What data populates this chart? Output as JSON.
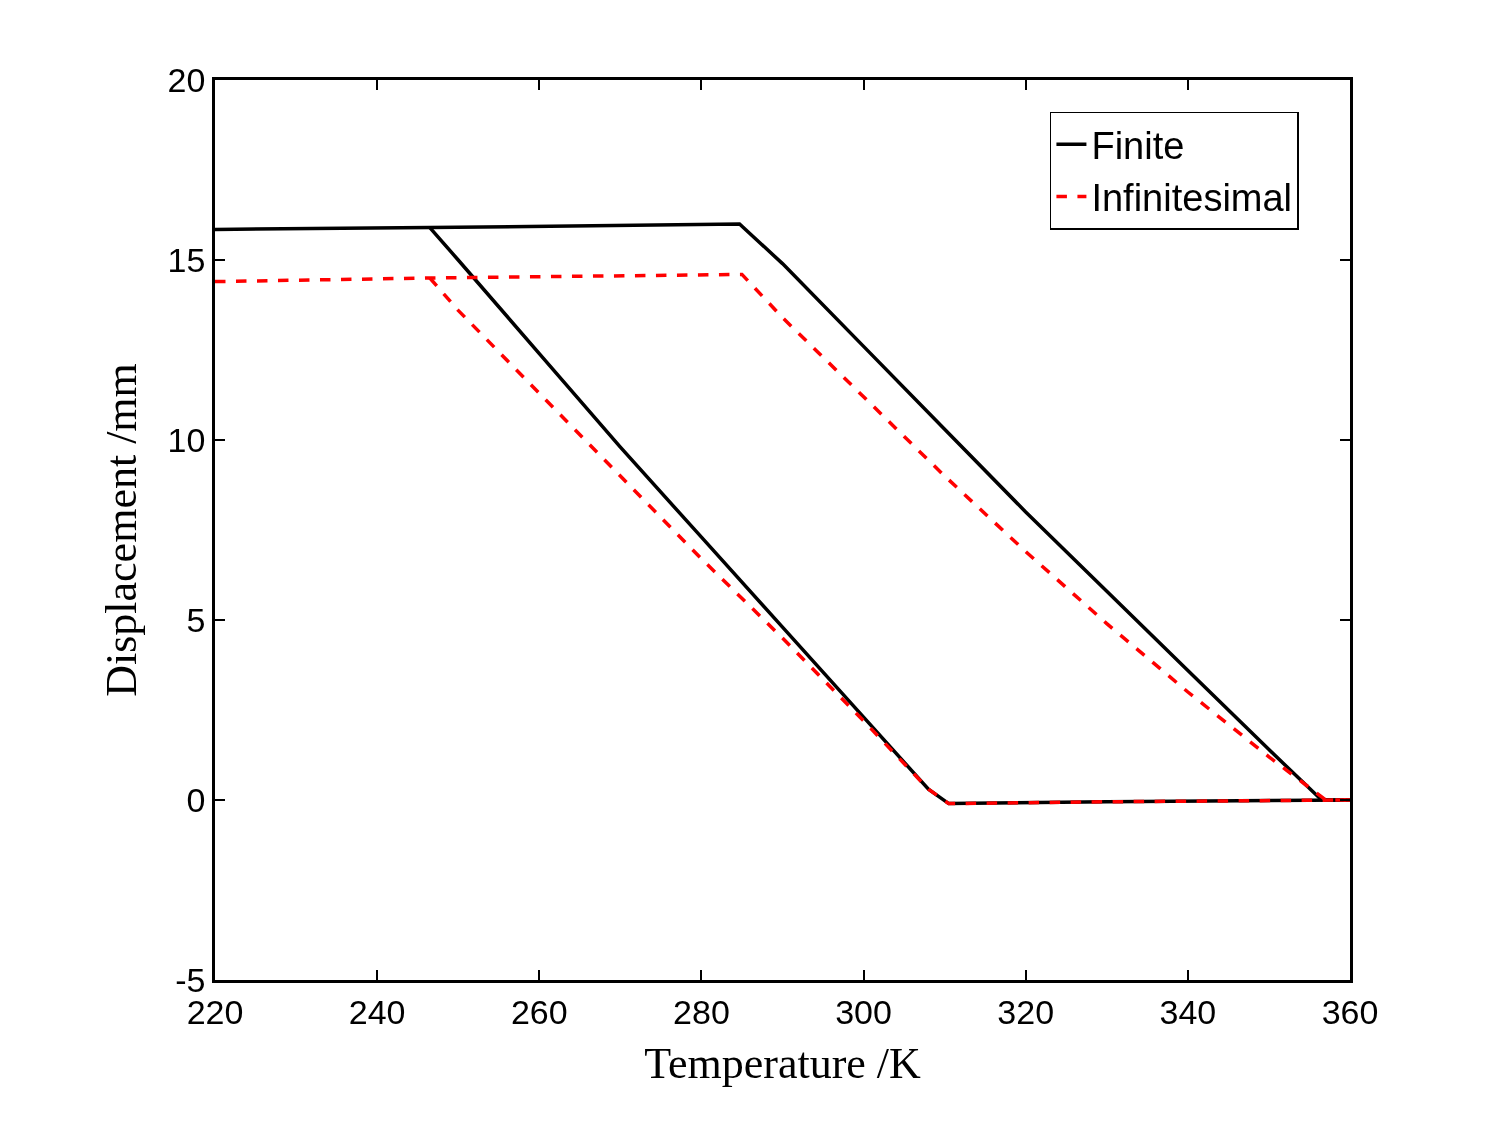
{
  "chart_data": {
    "type": "line",
    "xlabel": "Temperature /K",
    "ylabel": "Displacement /mm",
    "xlim": [
      220,
      360
    ],
    "xticks": [
      220,
      240,
      260,
      280,
      300,
      320,
      340,
      360
    ],
    "ylim": [
      -5,
      20
    ],
    "yticks": [
      -5,
      0,
      5,
      10,
      15,
      20
    ],
    "grid": false,
    "legend": "top right",
    "marker": "none",
    "series": [
      {
        "name": "Finite",
        "color": "#000000",
        "line_style": "solid",
        "x": [
          220,
          246.5,
          284.7,
          290,
          300,
          310,
          320,
          330,
          340,
          350,
          356.5,
          360
        ],
        "values": [
          15.85,
          15.9,
          16.0,
          14.9,
          12.6,
          10.3,
          8.0,
          5.8,
          3.6,
          1.4,
          0,
          0
        ]
      },
      {
        "color": "#000000",
        "line_style": "solid",
        "x": [
          246.5,
          250,
          260,
          270,
          280,
          290,
          300,
          308,
          310.5,
          330,
          360
        ],
        "values": [
          15.9,
          15.0,
          12.4,
          9.8,
          7.3,
          4.8,
          2.3,
          0.3,
          -0.1,
          -0.05,
          0
        ]
      },
      {
        "name": "Infinitesimal",
        "color": "#ff0000",
        "line_style": "dashed",
        "x": [
          220,
          246.5,
          285,
          290,
          300,
          310,
          320,
          330,
          340,
          350,
          357,
          360
        ],
        "values": [
          14.4,
          14.5,
          14.6,
          13.4,
          11.2,
          9.0,
          6.9,
          4.9,
          3.0,
          1.2,
          0,
          0
        ]
      },
      {
        "color": "#ff0000",
        "line_style": "dashed",
        "x": [
          246.5,
          250,
          260,
          270,
          280,
          290,
          300,
          308,
          310.5,
          330,
          360
        ],
        "values": [
          14.5,
          13.6,
          11.3,
          9.0,
          6.7,
          4.5,
          2.2,
          0.3,
          -0.1,
          -0.05,
          0
        ]
      }
    ]
  }
}
